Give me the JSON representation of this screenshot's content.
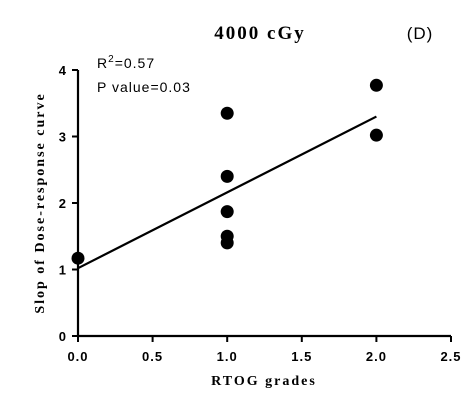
{
  "chart_data": {
    "type": "scatter",
    "title": "4000 cGy",
    "panel_label": "(D)",
    "xlabel": "RTOG grades",
    "ylabel": "Slop of Dose-response curve",
    "xlim": [
      0,
      2.5
    ],
    "ylim": [
      0,
      4
    ],
    "x_ticks": [
      "0.0",
      "0.5",
      "1.0",
      "1.5",
      "2.0",
      "2.5"
    ],
    "y_ticks": [
      "0",
      "1",
      "2",
      "3",
      "4"
    ],
    "grid": false,
    "points": [
      {
        "x": 0.0,
        "y": 1.17
      },
      {
        "x": 1.0,
        "y": 3.35
      },
      {
        "x": 1.0,
        "y": 2.4
      },
      {
        "x": 1.0,
        "y": 1.87
      },
      {
        "x": 1.0,
        "y": 1.5
      },
      {
        "x": 1.0,
        "y": 1.4
      },
      {
        "x": 2.0,
        "y": 3.77
      },
      {
        "x": 2.0,
        "y": 3.02
      }
    ],
    "regression_line": {
      "x": [
        0,
        2
      ],
      "y": [
        1.02,
        3.3
      ]
    },
    "annotations": {
      "r2_prefix": "R",
      "r2_superscript": "2",
      "r2_value": "=0.57",
      "p_value": "P value=0.03"
    }
  }
}
